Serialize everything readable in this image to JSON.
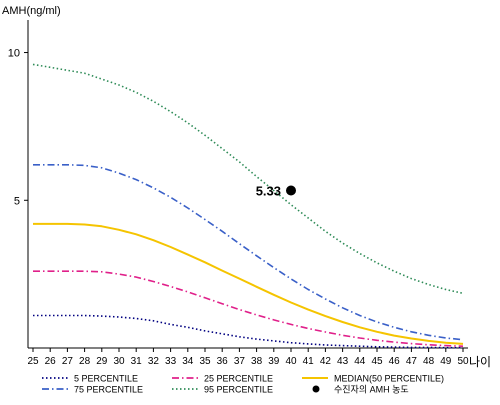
{
  "chart_data": {
    "type": "line",
    "title": "",
    "ylabel": "AMH(ng/ml)",
    "xlabel": "나이",
    "ylim": [
      0,
      11
    ],
    "xlim": [
      25,
      50
    ],
    "x_ticks": [
      25,
      26,
      27,
      28,
      29,
      30,
      31,
      32,
      33,
      34,
      35,
      36,
      37,
      38,
      39,
      40,
      41,
      42,
      43,
      44,
      45,
      46,
      47,
      48,
      49,
      50
    ],
    "y_ticks": [
      5,
      10
    ],
    "grid": false,
    "legend_position": "bottom",
    "x": [
      25,
      26,
      27,
      28,
      29,
      30,
      31,
      32,
      33,
      34,
      35,
      36,
      37,
      38,
      39,
      40,
      41,
      42,
      43,
      44,
      45,
      46,
      47,
      48,
      49,
      50
    ],
    "series": [
      {
        "name": "5 PERCENTILE",
        "color": "#000080",
        "dash": "dotted",
        "values": [
          1.1,
          1.1,
          1.1,
          1.1,
          1.08,
          1.05,
          1.0,
          0.92,
          0.8,
          0.7,
          0.58,
          0.48,
          0.38,
          0.3,
          0.24,
          0.18,
          0.14,
          0.1,
          0.08,
          0.06,
          0.04,
          0.03,
          0.02,
          0.02,
          0.01,
          0.01
        ]
      },
      {
        "name": "25 PERCENTILE",
        "color": "#e0208a",
        "dash": "dashdot",
        "values": [
          2.6,
          2.6,
          2.6,
          2.6,
          2.58,
          2.5,
          2.4,
          2.25,
          2.08,
          1.9,
          1.7,
          1.5,
          1.3,
          1.12,
          0.95,
          0.8,
          0.66,
          0.54,
          0.43,
          0.34,
          0.26,
          0.2,
          0.15,
          0.11,
          0.08,
          0.06
        ]
      },
      {
        "name": "MEDIAN(50 PERCENTILE)",
        "color": "#f5c400",
        "dash": "solid",
        "values": [
          4.2,
          4.2,
          4.2,
          4.18,
          4.12,
          4.0,
          3.85,
          3.65,
          3.42,
          3.16,
          2.9,
          2.62,
          2.35,
          2.07,
          1.8,
          1.54,
          1.3,
          1.08,
          0.88,
          0.7,
          0.55,
          0.42,
          0.32,
          0.24,
          0.18,
          0.14
        ]
      },
      {
        "name": "75 PERCENTILE",
        "color": "#3a60c8",
        "dash": "dashdot",
        "values": [
          6.2,
          6.2,
          6.2,
          6.18,
          6.1,
          5.92,
          5.7,
          5.42,
          5.1,
          4.74,
          4.35,
          3.95,
          3.53,
          3.12,
          2.72,
          2.34,
          1.98,
          1.66,
          1.36,
          1.1,
          0.88,
          0.7,
          0.55,
          0.43,
          0.34,
          0.28
        ]
      },
      {
        "name": "95 PERCENTILE",
        "color": "#2e8b57",
        "dash": "dotted",
        "values": [
          9.6,
          9.5,
          9.4,
          9.3,
          9.1,
          8.9,
          8.65,
          8.35,
          8.0,
          7.62,
          7.2,
          6.75,
          6.3,
          5.8,
          5.33,
          4.85,
          4.4,
          3.95,
          3.55,
          3.2,
          2.88,
          2.6,
          2.35,
          2.15,
          1.98,
          1.85
        ]
      }
    ],
    "patient_point": {
      "name": "수진자의 AMH 농도",
      "x": 40,
      "y": 5.33,
      "label": "5.33",
      "color": "#000000"
    }
  }
}
